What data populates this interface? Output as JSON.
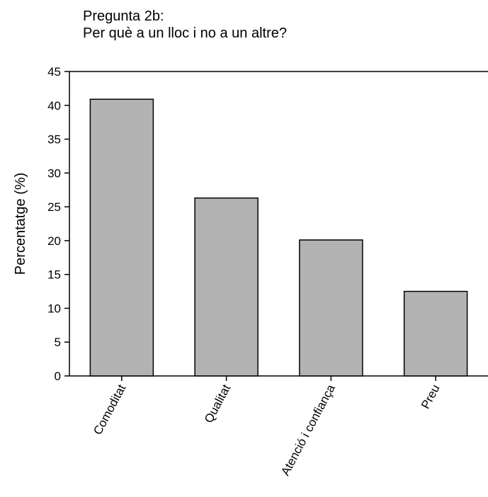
{
  "chart_data": {
    "type": "bar",
    "title_lines": [
      "Pregunta 2b:",
      "Per què a un lloc i no a un altre?"
    ],
    "xlabel": "",
    "ylabel": "Percentatge (%)",
    "categories": [
      "Comoditat",
      "Qualitat",
      "Atenció i confiança",
      "Preu"
    ],
    "values": [
      40.9,
      26.3,
      20.1,
      12.5
    ],
    "ylim": [
      0,
      45
    ],
    "yticks": [
      0,
      5,
      10,
      15,
      20,
      25,
      30,
      35,
      40,
      45
    ],
    "grid": false,
    "legend": "none",
    "bar_color": "#b3b3b3",
    "bar_edge_color": "#000000"
  }
}
